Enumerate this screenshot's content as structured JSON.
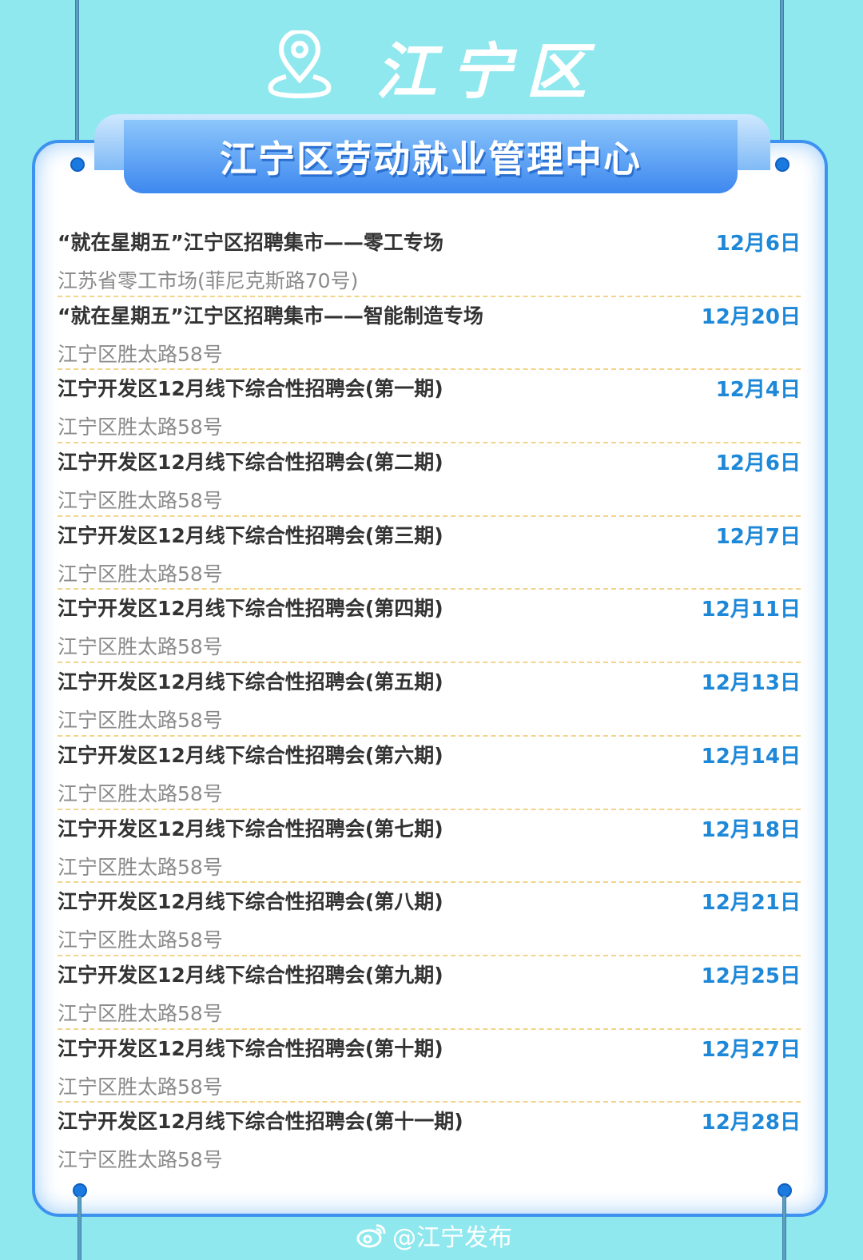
{
  "header": {
    "district": "江宁区",
    "icon": "location-pin-icon"
  },
  "banner": {
    "title": "江宁区劳动就业管理中心"
  },
  "events": [
    {
      "title": "“就在星期五”江宁区招聘集市——零工专场",
      "address": "江苏省零工市场(菲尼克斯路70号)",
      "date": "12月6日"
    },
    {
      "title": "“就在星期五”江宁区招聘集市——智能制造专场",
      "address": "江宁区胜太路58号",
      "date": "12月20日"
    },
    {
      "title": "江宁开发区12月线下综合性招聘会(第一期)",
      "address": "江宁区胜太路58号",
      "date": "12月4日"
    },
    {
      "title": "江宁开发区12月线下综合性招聘会(第二期)",
      "address": "江宁区胜太路58号",
      "date": "12月6日"
    },
    {
      "title": "江宁开发区12月线下综合性招聘会(第三期)",
      "address": "江宁区胜太路58号",
      "date": "12月7日"
    },
    {
      "title": "江宁开发区12月线下综合性招聘会(第四期)",
      "address": "江宁区胜太路58号",
      "date": "12月11日"
    },
    {
      "title": "江宁开发区12月线下综合性招聘会(第五期)",
      "address": "江宁区胜太路58号",
      "date": "12月13日"
    },
    {
      "title": "江宁开发区12月线下综合性招聘会(第六期)",
      "address": "江宁区胜太路58号",
      "date": "12月14日"
    },
    {
      "title": "江宁开发区12月线下综合性招聘会(第七期)",
      "address": "江宁区胜太路58号",
      "date": "12月18日"
    },
    {
      "title": "江宁开发区12月线下综合性招聘会(第八期)",
      "address": "江宁区胜太路58号",
      "date": "12月21日"
    },
    {
      "title": "江宁开发区12月线下综合性招聘会(第九期)",
      "address": "江宁区胜太路58号",
      "date": "12月25日"
    },
    {
      "title": "江宁开发区12月线下综合性招聘会(第十期)",
      "address": "江宁区胜太路58号",
      "date": "12月27日"
    },
    {
      "title": "江宁开发区12月线下综合性招聘会(第十一期)",
      "address": "江宁区胜太路58号",
      "date": "12月28日"
    }
  ],
  "footer": {
    "watermark": "@江宁发布",
    "icon": "weibo-icon"
  },
  "colors": {
    "background": "#90e8ef",
    "accent": "#3d88ef",
    "date": "#1e88d8",
    "divider": "#f2d48a"
  }
}
